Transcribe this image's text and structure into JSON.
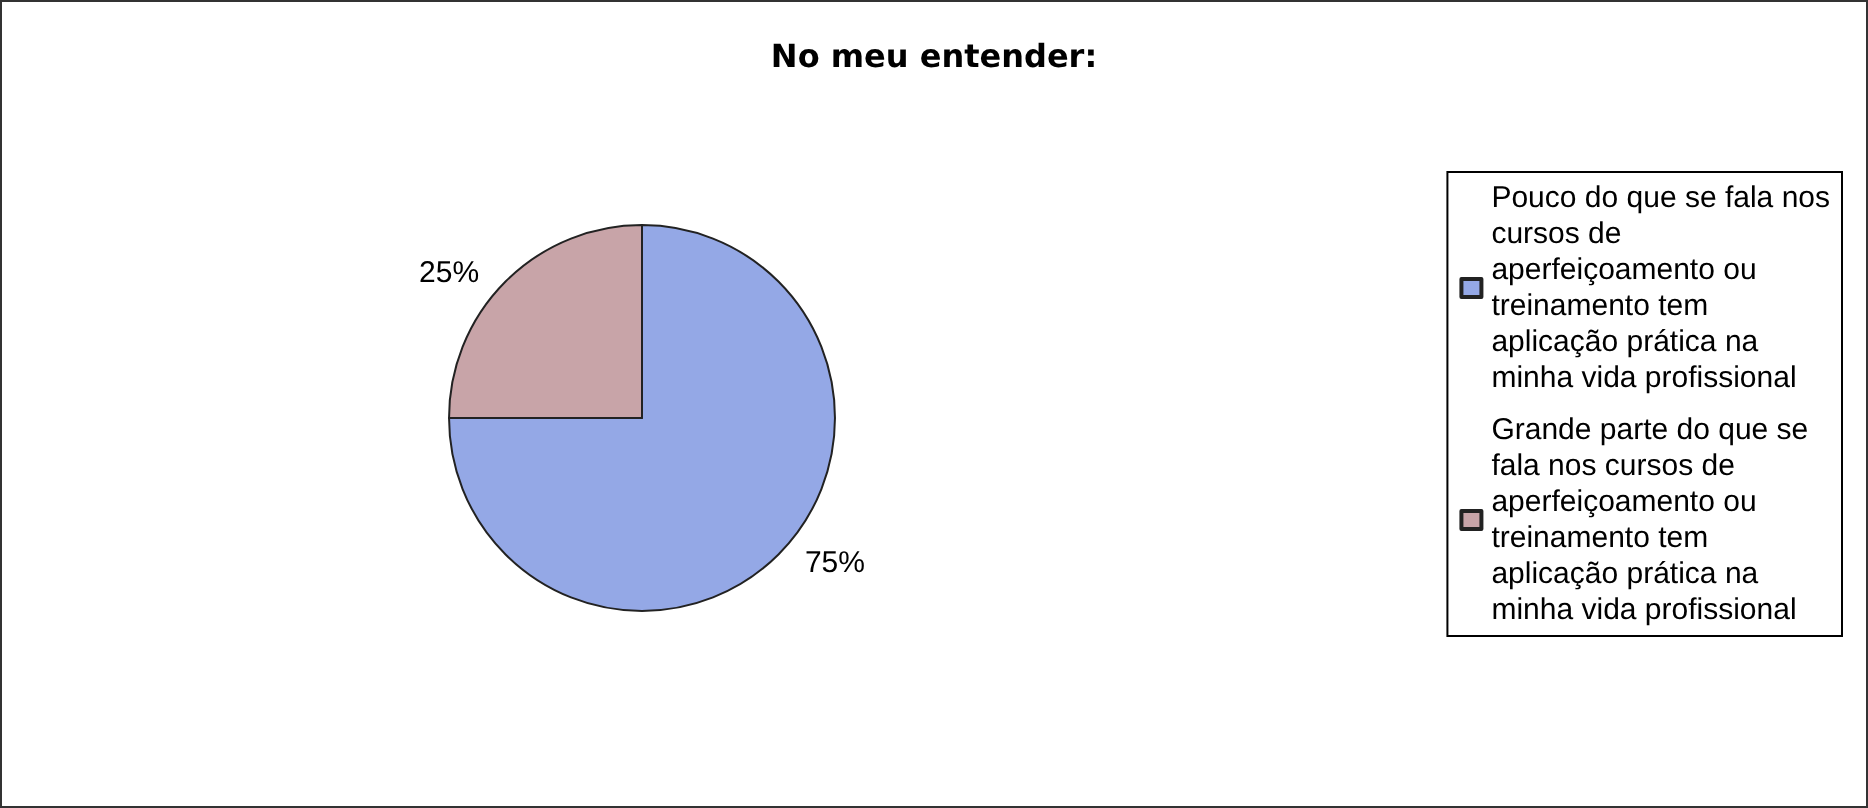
{
  "chart_data": {
    "type": "pie",
    "title": "No meu entender:",
    "categories": [
      "Pouco do que se fala nos cursos de aperfeiçoamento ou treinamento tem aplicação prática na minha vida profissional",
      "Grande parte do que se fala nos cursos de aperfeiçoamento ou treinamento tem aplicação prática na minha vida profissional"
    ],
    "values": [
      75,
      25
    ],
    "colors": [
      "#94a8e6",
      "#c8a4a8"
    ],
    "value_labels": [
      "75%",
      "25%"
    ],
    "legend": "right"
  }
}
